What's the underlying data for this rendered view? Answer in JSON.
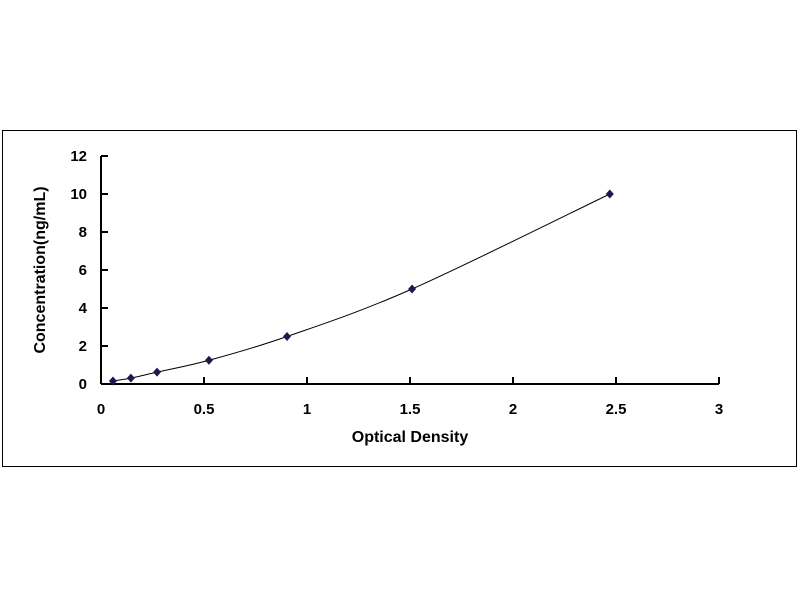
{
  "chart_data": {
    "type": "scatter",
    "title": "",
    "xlabel": "Optical Density",
    "ylabel": "Concentration(ng/mL)",
    "xlim": [
      0,
      3
    ],
    "ylim": [
      0,
      12
    ],
    "xticks": [
      "0",
      "0.5",
      "1",
      "1.5",
      "2",
      "2.5",
      "3"
    ],
    "yticks": [
      "0",
      "2",
      "4",
      "6",
      "8",
      "10",
      "12"
    ],
    "grid": false,
    "legend": "none",
    "trendline": "smooth curve",
    "marker": "diamond",
    "marker_color": "#1a1a4e",
    "x": [
      0.058,
      0.145,
      0.272,
      0.524,
      0.903,
      1.51,
      2.47
    ],
    "y": [
      0.156,
      0.312,
      0.625,
      1.25,
      2.5,
      5,
      10
    ]
  }
}
